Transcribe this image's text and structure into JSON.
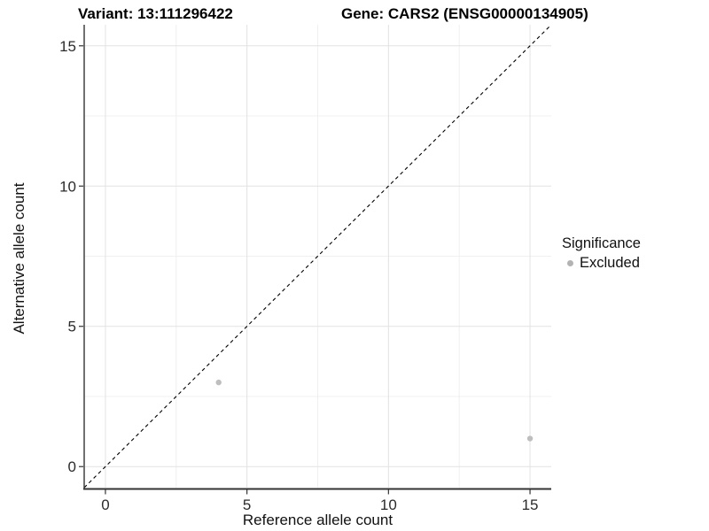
{
  "chart_data": {
    "type": "scatter",
    "title_left": "Variant: 13:111296422",
    "title_right": "Gene: CARS2 (ENSG00000134905)",
    "xlabel": "Reference allele count",
    "ylabel": "Alternative allele count",
    "xlim": [
      -0.75,
      15.75
    ],
    "ylim": [
      -0.75,
      15.75
    ],
    "xticks": [
      0,
      5,
      10,
      15
    ],
    "yticks": [
      0,
      5,
      10,
      15
    ],
    "minor_xticks": [
      2.5,
      7.5,
      12.5
    ],
    "minor_yticks": [
      2.5,
      7.5,
      12.5
    ],
    "grid": "major and minor gridlines on, white background",
    "identity_line": {
      "slope": 1,
      "intercept": 0,
      "style": "dashed",
      "color": "#000000"
    },
    "series": [
      {
        "name": "Excluded",
        "color": "#bebebe",
        "point_radius": 3.2,
        "points": [
          [
            4,
            3
          ],
          [
            15,
            1
          ]
        ]
      }
    ],
    "legend": {
      "title": "Significance",
      "position": "right",
      "items": [
        {
          "label": "Excluded",
          "color": "#b3b3b3"
        }
      ]
    },
    "colors": {
      "background": "#ffffff",
      "grid_major": "#e2e2e2",
      "grid_minor": "#f0f0f0",
      "axis_line": "#333333",
      "tick_label": "#2b2b2b",
      "title_text": "#000000"
    }
  }
}
